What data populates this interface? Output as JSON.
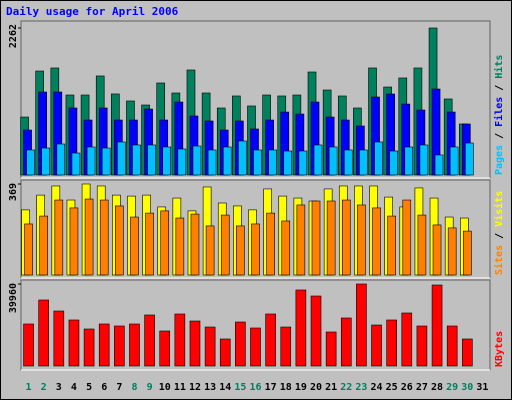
{
  "title": "Daily usage for April 2006",
  "categories": [
    "1",
    "2",
    "3",
    "4",
    "5",
    "6",
    "7",
    "8",
    "9",
    "10",
    "11",
    "12",
    "13",
    "14",
    "15",
    "16",
    "17",
    "18",
    "19",
    "20",
    "21",
    "22",
    "23",
    "24",
    "25",
    "26",
    "27",
    "28",
    "29",
    "30",
    "31"
  ],
  "category_label_colors": [
    "#00805c",
    "#00805c",
    "#000000",
    "#000000",
    "#000000",
    "#000000",
    "#000000",
    "#00805c",
    "#00805c",
    "#000000",
    "#000000",
    "#000000",
    "#000000",
    "#000000",
    "#00805c",
    "#00805c",
    "#000000",
    "#000000",
    "#000000",
    "#000000",
    "#000000",
    "#00805c",
    "#00805c",
    "#000000",
    "#000000",
    "#000000",
    "#000000",
    "#000000",
    "#00805c",
    "#00805c",
    "#000000"
  ],
  "legend_separator": " / ",
  "chart_data": [
    {
      "type": "bar",
      "ylim": [
        0,
        2262
      ],
      "yticks": [
        2262
      ],
      "series": [
        {
          "name": "Hits",
          "color": "#00805c",
          "values": [
            892,
            1600,
            1647,
            1231,
            1231,
            1524,
            1247,
            1139,
            1077,
            1416,
            1262,
            1616,
            1262,
            1031,
            1216,
            1062,
            1231,
            1216,
            1231,
            1585,
            1308,
            1216,
            1031,
            1647,
            1354,
            1493,
            1647,
            2262,
            1170,
            785,
            null
          ]
        },
        {
          "name": "Files",
          "color": "#0000ff",
          "values": [
            692,
            1277,
            1277,
            1031,
            846,
            1031,
            846,
            846,
            1015,
            846,
            1123,
            908,
            831,
            692,
            831,
            708,
            846,
            969,
            938,
            1123,
            892,
            846,
            754,
            1200,
            1246,
            1092,
            1000,
            1323,
            969,
            785,
            null
          ]
        },
        {
          "name": "Pages",
          "color": "#00c0ff",
          "values": [
            385,
            415,
            477,
            338,
            431,
            415,
            508,
            462,
            462,
            431,
            400,
            446,
            385,
            431,
            523,
            385,
            385,
            369,
            369,
            462,
            431,
            385,
            385,
            508,
            369,
            431,
            462,
            308,
            431,
            492,
            null
          ]
        }
      ]
    },
    {
      "type": "bar",
      "ylim": [
        0,
        369
      ],
      "yticks": [
        369
      ],
      "series": [
        {
          "name": "Visits",
          "color": "#ffff00",
          "values": [
            264,
            324,
            361,
            304,
            369,
            361,
            324,
            320,
            324,
            276,
            312,
            260,
            357,
            292,
            280,
            264,
            349,
            320,
            312,
            300,
            349,
            361,
            361,
            361,
            316,
            276,
            353,
            312,
            235,
            231,
            null
          ]
        },
        {
          "name": "Sites",
          "color": "#ff8000",
          "values": [
            207,
            239,
            304,
            272,
            308,
            304,
            280,
            235,
            251,
            260,
            231,
            247,
            199,
            243,
            199,
            207,
            251,
            219,
            284,
            300,
            300,
            304,
            284,
            272,
            239,
            304,
            243,
            203,
            191,
            178,
            null
          ]
        }
      ]
    },
    {
      "type": "bar",
      "ylim": [
        0,
        39960
      ],
      "yticks": [
        39960
      ],
      "series": [
        {
          "name": "KBytes",
          "color": "#ff0000",
          "values": [
            20470,
            32165,
            26800,
            22420,
            18030,
            20470,
            19490,
            20470,
            24860,
            17060,
            25340,
            21930,
            19000,
            13160,
            21440,
            18520,
            25340,
            19000,
            37040,
            34110,
            16570,
            23390,
            39960,
            19980,
            22420,
            25830,
            19490,
            39470,
            19490,
            13160,
            null
          ]
        }
      ]
    }
  ]
}
